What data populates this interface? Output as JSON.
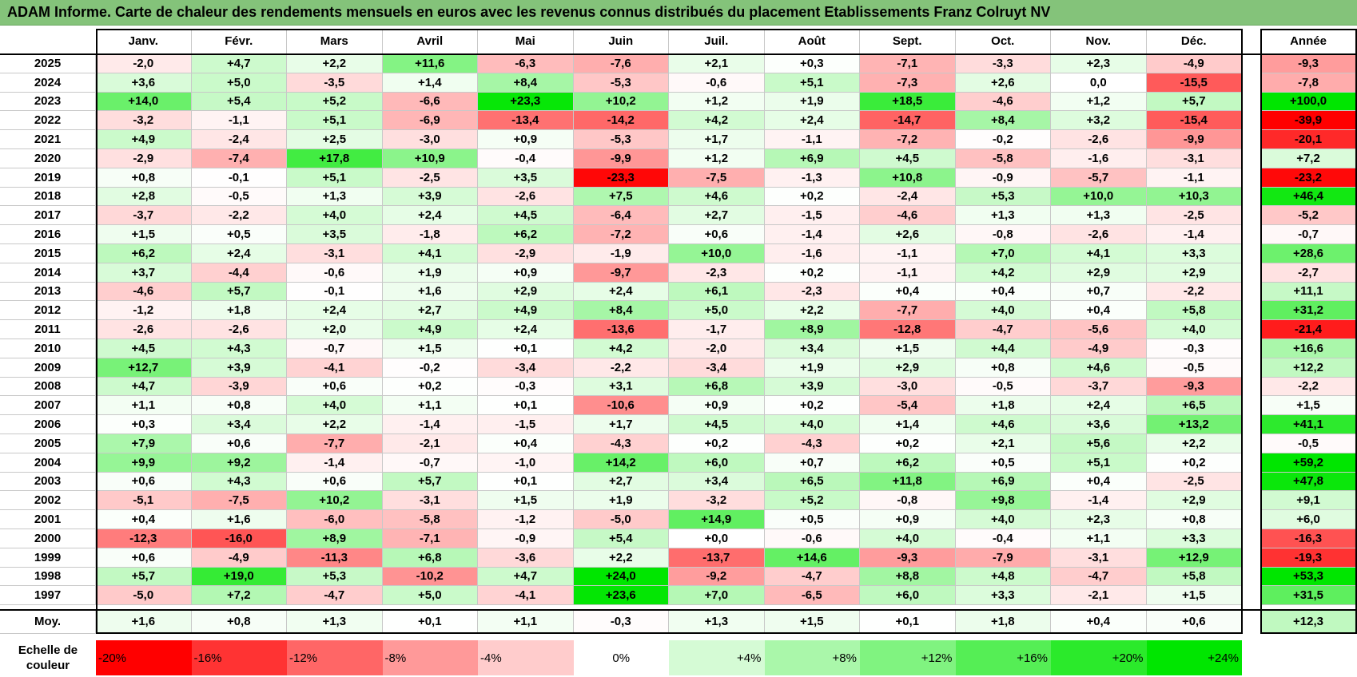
{
  "title": "ADAM Informe. Carte de chaleur des rendements mensuels en euros avec les revenus connus distribués du placement Etablissements Franz Colruyt NV",
  "chart_data": {
    "type": "heatmap",
    "months": [
      "Janv.",
      "Févr.",
      "Mars",
      "Avril",
      "Mai",
      "Juin",
      "Juil.",
      "Août",
      "Sept.",
      "Oct.",
      "Nov.",
      "Déc."
    ],
    "year_header": "Année",
    "avg_label": "Moy.",
    "rows": [
      {
        "year": "2025",
        "values": [
          "-2,0",
          "+4,7",
          "+2,2",
          "+11,6",
          "-6,3",
          "-7,6",
          "+2,1",
          "+0,3",
          "-7,1",
          "-3,3",
          "+2,3",
          "-4,9"
        ],
        "annual": "-9,3"
      },
      {
        "year": "2024",
        "values": [
          "+3,6",
          "+5,0",
          "-3,5",
          "+1,4",
          "+8,4",
          "-5,3",
          "-0,6",
          "+5,1",
          "-7,3",
          "+2,6",
          "0,0",
          "-15,5"
        ],
        "annual": "-7,8"
      },
      {
        "year": "2023",
        "values": [
          "+14,0",
          "+5,4",
          "+5,2",
          "-6,6",
          "+23,3",
          "+10,2",
          "+1,2",
          "+1,9",
          "+18,5",
          "-4,6",
          "+1,2",
          "+5,7"
        ],
        "annual": "+100,0"
      },
      {
        "year": "2022",
        "values": [
          "-3,2",
          "-1,1",
          "+5,1",
          "-6,9",
          "-13,4",
          "-14,2",
          "+4,2",
          "+2,4",
          "-14,7",
          "+8,4",
          "+3,2",
          "-15,4"
        ],
        "annual": "-39,9"
      },
      {
        "year": "2021",
        "values": [
          "+4,9",
          "-2,4",
          "+2,5",
          "-3,0",
          "+0,9",
          "-5,3",
          "+1,7",
          "-1,1",
          "-7,2",
          "-0,2",
          "-2,6",
          "-9,9"
        ],
        "annual": "-20,1"
      },
      {
        "year": "2020",
        "values": [
          "-2,9",
          "-7,4",
          "+17,8",
          "+10,9",
          "-0,4",
          "-9,9",
          "+1,2",
          "+6,9",
          "+4,5",
          "-5,8",
          "-1,6",
          "-3,1"
        ],
        "annual": "+7,2"
      },
      {
        "year": "2019",
        "values": [
          "+0,8",
          "-0,1",
          "+5,1",
          "-2,5",
          "+3,5",
          "-23,3",
          "-7,5",
          "-1,3",
          "+10,8",
          "-0,9",
          "-5,7",
          "-1,1"
        ],
        "annual": "-23,2"
      },
      {
        "year": "2018",
        "values": [
          "+2,8",
          "-0,5",
          "+1,3",
          "+3,9",
          "-2,6",
          "+7,5",
          "+4,6",
          "+0,2",
          "-2,4",
          "+5,3",
          "+10,0",
          "+10,3"
        ],
        "annual": "+46,4"
      },
      {
        "year": "2017",
        "values": [
          "-3,7",
          "-2,2",
          "+4,0",
          "+2,4",
          "+4,5",
          "-6,4",
          "+2,7",
          "-1,5",
          "-4,6",
          "+1,3",
          "+1,3",
          "-2,5"
        ],
        "annual": "-5,2"
      },
      {
        "year": "2016",
        "values": [
          "+1,5",
          "+0,5",
          "+3,5",
          "-1,8",
          "+6,2",
          "-7,2",
          "+0,6",
          "-1,4",
          "+2,6",
          "-0,8",
          "-2,6",
          "-1,4"
        ],
        "annual": "-0,7"
      },
      {
        "year": "2015",
        "values": [
          "+6,2",
          "+2,4",
          "-3,1",
          "+4,1",
          "-2,9",
          "-1,9",
          "+10,0",
          "-1,6",
          "-1,1",
          "+7,0",
          "+4,1",
          "+3,3"
        ],
        "annual": "+28,6"
      },
      {
        "year": "2014",
        "values": [
          "+3,7",
          "-4,4",
          "-0,6",
          "+1,9",
          "+0,9",
          "-9,7",
          "-2,3",
          "+0,2",
          "-1,1",
          "+4,2",
          "+2,9",
          "+2,9"
        ],
        "annual": "-2,7"
      },
      {
        "year": "2013",
        "values": [
          "-4,6",
          "+5,7",
          "-0,1",
          "+1,6",
          "+2,9",
          "+2,4",
          "+6,1",
          "-2,3",
          "+0,4",
          "+0,4",
          "+0,7",
          "-2,2"
        ],
        "annual": "+11,1"
      },
      {
        "year": "2012",
        "values": [
          "-1,2",
          "+1,8",
          "+2,4",
          "+2,7",
          "+4,9",
          "+8,4",
          "+5,0",
          "+2,2",
          "-7,7",
          "+4,0",
          "+0,4",
          "+5,8"
        ],
        "annual": "+31,2"
      },
      {
        "year": "2011",
        "values": [
          "-2,6",
          "-2,6",
          "+2,0",
          "+4,9",
          "+2,4",
          "-13,6",
          "-1,7",
          "+8,9",
          "-12,8",
          "-4,7",
          "-5,6",
          "+4,0"
        ],
        "annual": "-21,4"
      },
      {
        "year": "2010",
        "values": [
          "+4,5",
          "+4,3",
          "-0,7",
          "+1,5",
          "+0,1",
          "+4,2",
          "-2,0",
          "+3,4",
          "+1,5",
          "+4,4",
          "-4,9",
          "-0,3"
        ],
        "annual": "+16,6"
      },
      {
        "year": "2009",
        "values": [
          "+12,7",
          "+3,9",
          "-4,1",
          "-0,2",
          "-3,4",
          "-2,2",
          "-3,4",
          "+1,9",
          "+2,9",
          "+0,8",
          "+4,6",
          "-0,5"
        ],
        "annual": "+12,2"
      },
      {
        "year": "2008",
        "values": [
          "+4,7",
          "-3,9",
          "+0,6",
          "+0,2",
          "-0,3",
          "+3,1",
          "+6,8",
          "+3,9",
          "-3,0",
          "-0,5",
          "-3,7",
          "-9,3"
        ],
        "annual": "-2,2"
      },
      {
        "year": "2007",
        "values": [
          "+1,1",
          "+0,8",
          "+4,0",
          "+1,1",
          "+0,1",
          "-10,6",
          "+0,9",
          "+0,2",
          "-5,4",
          "+1,8",
          "+2,4",
          "+6,5"
        ],
        "annual": "+1,5"
      },
      {
        "year": "2006",
        "values": [
          "+0,3",
          "+3,4",
          "+2,2",
          "-1,4",
          "-1,5",
          "+1,7",
          "+4,5",
          "+4,0",
          "+1,4",
          "+4,6",
          "+3,6",
          "+13,2"
        ],
        "annual": "+41,1"
      },
      {
        "year": "2005",
        "values": [
          "+7,9",
          "+0,6",
          "-7,7",
          "-2,1",
          "+0,4",
          "-4,3",
          "+0,2",
          "-4,3",
          "+0,2",
          "+2,1",
          "+5,6",
          "+2,2"
        ],
        "annual": "-0,5"
      },
      {
        "year": "2004",
        "values": [
          "+9,9",
          "+9,2",
          "-1,4",
          "-0,7",
          "-1,0",
          "+14,2",
          "+6,0",
          "+0,7",
          "+6,2",
          "+0,5",
          "+5,1",
          "+0,2"
        ],
        "annual": "+59,2"
      },
      {
        "year": "2003",
        "values": [
          "+0,6",
          "+4,3",
          "+0,6",
          "+5,7",
          "+0,1",
          "+2,7",
          "+3,4",
          "+6,5",
          "+11,8",
          "+6,9",
          "+0,4",
          "-2,5"
        ],
        "annual": "+47,8"
      },
      {
        "year": "2002",
        "values": [
          "-5,1",
          "-7,5",
          "+10,2",
          "-3,1",
          "+1,5",
          "+1,9",
          "-3,2",
          "+5,2",
          "-0,8",
          "+9,8",
          "-1,4",
          "+2,9"
        ],
        "annual": "+9,1"
      },
      {
        "year": "2001",
        "values": [
          "+0,4",
          "+1,6",
          "-6,0",
          "-5,8",
          "-1,2",
          "-5,0",
          "+14,9",
          "+0,5",
          "+0,9",
          "+4,0",
          "+2,3",
          "+0,8"
        ],
        "annual": "+6,0"
      },
      {
        "year": "2000",
        "values": [
          "-12,3",
          "-16,0",
          "+8,9",
          "-7,1",
          "-0,9",
          "+5,4",
          "+0,0",
          "-0,6",
          "+4,0",
          "-0,4",
          "+1,1",
          "+3,3"
        ],
        "annual": "-16,3"
      },
      {
        "year": "1999",
        "values": [
          "+0,6",
          "-4,9",
          "-11,3",
          "+6,8",
          "-3,6",
          "+2,2",
          "-13,7",
          "+14,6",
          "-9,3",
          "-7,9",
          "-3,1",
          "+12,9"
        ],
        "annual": "-19,3"
      },
      {
        "year": "1998",
        "values": [
          "+5,7",
          "+19,0",
          "+5,3",
          "-10,2",
          "+4,7",
          "+24,0",
          "-9,2",
          "-4,7",
          "+8,8",
          "+4,8",
          "-4,7",
          "+5,8"
        ],
        "annual": "+53,3"
      },
      {
        "year": "1997",
        "values": [
          "-5,0",
          "+7,2",
          "-4,7",
          "+5,0",
          "-4,1",
          "+23,6",
          "+7,0",
          "-6,5",
          "+6,0",
          "+3,3",
          "-2,1",
          "+1,5"
        ],
        "annual": "+31,5"
      }
    ],
    "averages": {
      "values": [
        "+1,6",
        "+0,8",
        "+1,3",
        "+0,1",
        "+1,1",
        "-0,3",
        "+1,3",
        "+1,5",
        "+0,1",
        "+1,8",
        "+0,4",
        "+0,6"
      ],
      "annual": "+12,3"
    },
    "scale": {
      "label_line1": "Echelle de",
      "label_line2": "couleur",
      "items": [
        {
          "label": "-20%",
          "value": -20
        },
        {
          "label": "-16%",
          "value": -16
        },
        {
          "label": "-12%",
          "value": -12
        },
        {
          "label": "-8%",
          "value": -8
        },
        {
          "label": "-4%",
          "value": -4
        },
        {
          "label": "0%",
          "value": 0
        },
        {
          "label": "+4%",
          "value": 4
        },
        {
          "label": "+8%",
          "value": 8
        },
        {
          "label": "+12%",
          "value": 12
        },
        {
          "label": "+16%",
          "value": 16
        },
        {
          "label": "+20%",
          "value": 20
        },
        {
          "label": "+24%",
          "value": 24
        }
      ]
    },
    "colors": {
      "negative": "#ff0000",
      "neutral": "#ffffff",
      "positive": "#00e600"
    }
  }
}
